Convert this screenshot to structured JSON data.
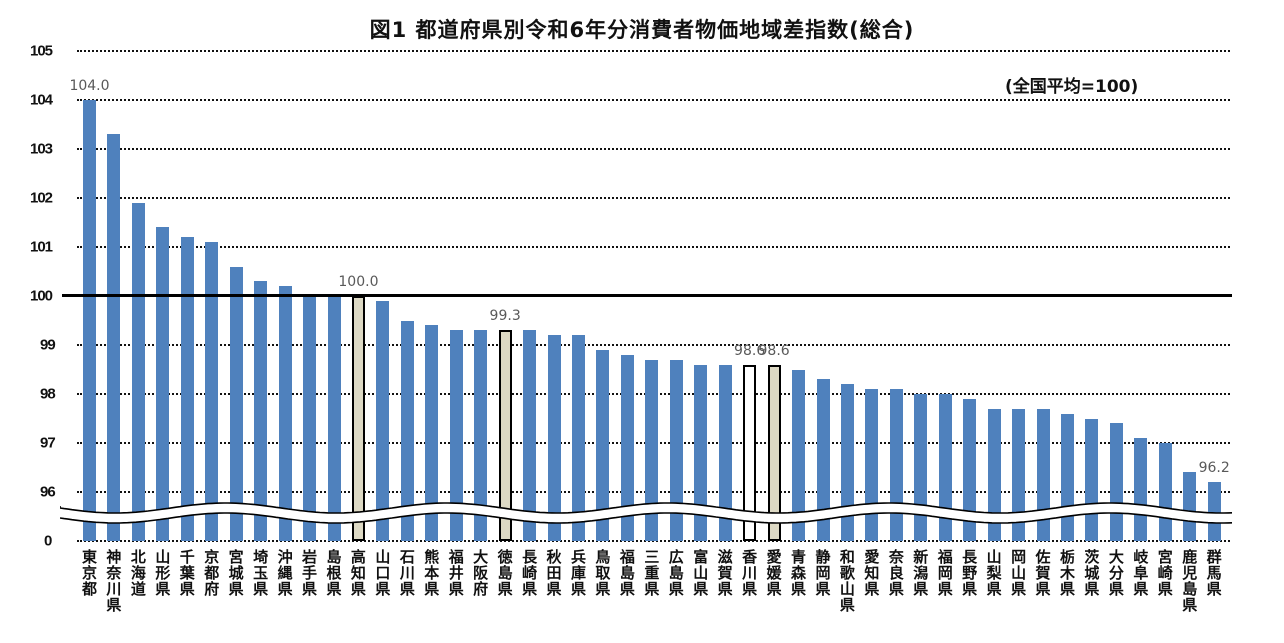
{
  "chart": {
    "title": "図1 都道府県別令和6年分消費者物価地域差指数(総合)",
    "note": "(全国平均=100)"
  },
  "chart_data": {
    "type": "bar",
    "title": "図1 都道府県別令和6年分消費者物価地域差指数(総合)",
    "subtitle": "(全国平均=100)",
    "xlabel": "",
    "ylabel": "",
    "ylim": [
      96,
      105
    ],
    "y_axis_break": {
      "from": 0,
      "to": 95.5
    },
    "yticks": [
      "105",
      "104",
      "103",
      "102",
      "101",
      "100",
      "99",
      "98",
      "97",
      "96",
      "0"
    ],
    "grid": true,
    "reference_line": 100,
    "categories": [
      "東京都",
      "神奈川県",
      "北海道",
      "山形県",
      "千葉県",
      "京都府",
      "宮城県",
      "埼玉県",
      "沖縄県",
      "岩手県",
      "島根県",
      "高知県",
      "山口県",
      "石川県",
      "熊本県",
      "福井県",
      "大阪府",
      "徳島県",
      "長崎県",
      "秋田県",
      "兵庫県",
      "鳥取県",
      "福島県",
      "三重県",
      "広島県",
      "富山県",
      "滋賀県",
      "香川県",
      "愛媛県",
      "青森県",
      "静岡県",
      "和歌山県",
      "愛知県",
      "奈良県",
      "新潟県",
      "福岡県",
      "長野県",
      "山梨県",
      "岡山県",
      "佐賀県",
      "栃木県",
      "茨城県",
      "大分県",
      "岐阜県",
      "宮崎県",
      "鹿児島県",
      "群馬県"
    ],
    "values": [
      104.0,
      103.3,
      101.9,
      101.4,
      101.2,
      101.1,
      100.6,
      100.3,
      100.2,
      100.0,
      100.0,
      100.0,
      99.9,
      99.5,
      99.4,
      99.3,
      99.3,
      99.3,
      99.3,
      99.2,
      99.2,
      98.9,
      98.8,
      98.7,
      98.7,
      98.6,
      98.6,
      98.6,
      98.6,
      98.5,
      98.3,
      98.2,
      98.1,
      98.1,
      98.0,
      98.0,
      97.9,
      97.7,
      97.7,
      97.7,
      97.6,
      97.5,
      97.4,
      97.1,
      97.0,
      96.4,
      96.2
    ],
    "highlights": {
      "高知県": "beige",
      "徳島県": "beige",
      "香川県": "white",
      "愛媛県": "beige"
    },
    "data_labels": [
      {
        "category": "東京都",
        "text": "104.0"
      },
      {
        "category": "高知県",
        "text": "100.0"
      },
      {
        "category": "徳島県",
        "text": "99.3"
      },
      {
        "category": "香川県",
        "text": "98.6"
      },
      {
        "category": "愛媛県",
        "text": "98.6"
      },
      {
        "category": "群馬県",
        "text": "96.2"
      }
    ],
    "colors": {
      "bar": "#4f81bd",
      "highlight": "#ddd9c4",
      "highlight_outline": "#000000",
      "reference_line": "#000000"
    }
  }
}
